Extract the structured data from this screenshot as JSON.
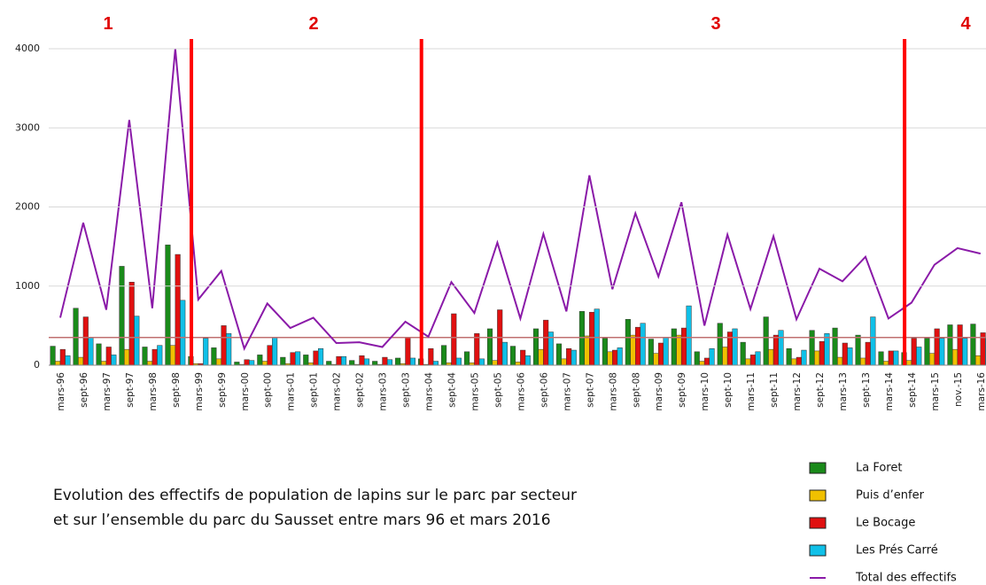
{
  "chart_data": {
    "type": "bar_line",
    "title": [
      "Evolution des effectifs de population de lapins sur le parc par secteur",
      "et sur l’ensemble du parc du Sausset entre mars 96 et mars 2016"
    ],
    "categories": [
      "mars-96",
      "sept-96",
      "mars-97",
      "sept-97",
      "mars-98",
      "sept-98",
      "mars-99",
      "sept-99",
      "mars-00",
      "sept-00",
      "mars-01",
      "sept-01",
      "mars-02",
      "sept-02",
      "mars-03",
      "sept-03",
      "mars-04",
      "sept-04",
      "mars-05",
      "sept-05",
      "mars-06",
      "sept-06",
      "mars-07",
      "sept-07",
      "mars-08",
      "sept-08",
      "mars-09",
      "sept-09",
      "mars-10",
      "sept-10",
      "mars-11",
      "sept-11",
      "mars-12",
      "sept-12",
      "mars-13",
      "sept-13",
      "mars-14",
      "sept-14",
      "mars-15",
      "nov.-15",
      "mars-16"
    ],
    "series": [
      {
        "name": "La Foret",
        "color": "#1a8a1a",
        "kind": "bar",
        "values": [
          240,
          720,
          270,
          1250,
          230,
          1520,
          110,
          220,
          40,
          130,
          100,
          130,
          50,
          60,
          50,
          90,
          80,
          250,
          170,
          460,
          240,
          460,
          270,
          680,
          340,
          580,
          330,
          460,
          170,
          530,
          290,
          610,
          210,
          440,
          470,
          380,
          170,
          160,
          340,
          510,
          520
        ]
      },
      {
        "name": "Puis d’enfer",
        "color": "#f0c000",
        "kind": "bar",
        "values": [
          50,
          100,
          50,
          200,
          50,
          250,
          20,
          80,
          10,
          50,
          20,
          30,
          10,
          10,
          10,
          20,
          10,
          30,
          30,
          60,
          40,
          200,
          80,
          370,
          170,
          380,
          150,
          380,
          50,
          230,
          80,
          200,
          80,
          180,
          100,
          90,
          50,
          60,
          150,
          200,
          120
        ]
      },
      {
        "name": "Le Bocage",
        "color": "#e01010",
        "kind": "bar",
        "values": [
          200,
          610,
          230,
          1050,
          200,
          1400,
          20,
          500,
          70,
          250,
          160,
          180,
          110,
          120,
          100,
          350,
          210,
          650,
          400,
          700,
          190,
          570,
          210,
          670,
          190,
          480,
          280,
          470,
          90,
          420,
          130,
          380,
          100,
          300,
          280,
          290,
          180,
          340,
          460,
          510,
          410
        ]
      },
      {
        "name": "Les Prés Carré",
        "color": "#10c0e8",
        "kind": "bar",
        "values": [
          120,
          350,
          130,
          620,
          250,
          820,
          340,
          400,
          60,
          350,
          170,
          210,
          110,
          80,
          70,
          90,
          50,
          90,
          80,
          290,
          120,
          420,
          190,
          710,
          220,
          530,
          350,
          750,
          210,
          460,
          170,
          440,
          190,
          400,
          220,
          610,
          180,
          230,
          340,
          340,
          350
        ]
      },
      {
        "name": "Total des effectifs",
        "color": "#8a1aa8",
        "kind": "line",
        "values": [
          600,
          1800,
          700,
          3100,
          720,
          4000,
          830,
          1190,
          210,
          780,
          470,
          600,
          280,
          290,
          230,
          550,
          360,
          1050,
          660,
          1550,
          590,
          1660,
          680,
          2400,
          960,
          1920,
          1120,
          2060,
          500,
          1650,
          710,
          1630,
          580,
          1220,
          1060,
          1370,
          590,
          790,
          1270,
          1480,
          1410
        ]
      }
    ],
    "reference_line": 350,
    "reference_color": "#c07070",
    "periods": [
      "1",
      "2",
      "3",
      "4"
    ],
    "dividers": [
      "mars-99",
      "mars-04",
      "sept-14"
    ],
    "divider_color": "#ff0000",
    "ylim": [
      0,
      4000
    ],
    "yticks": [
      0,
      1000,
      2000,
      3000,
      4000
    ],
    "grid": true
  }
}
